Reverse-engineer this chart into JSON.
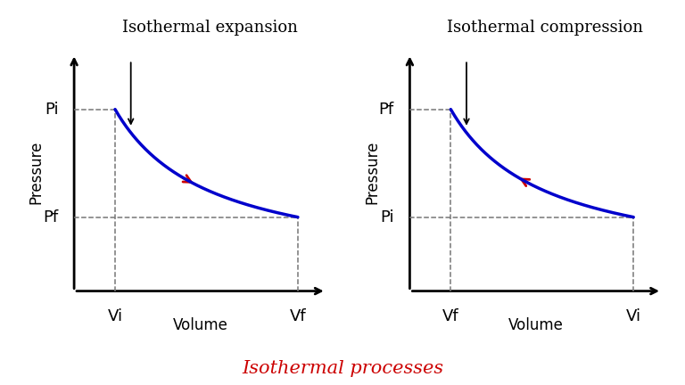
{
  "fig_width": 7.68,
  "fig_height": 4.32,
  "bg_color": "#ffffff",
  "title": "Isothermal processes",
  "title_color": "#cc0000",
  "title_fontsize": 15,
  "left_title": "Isothermal expansion",
  "right_title": "Isothermal compression",
  "subtitle_fontsize": 13,
  "curve_color": "#0000cc",
  "curve_linewidth": 2.5,
  "dashed_color": "#777777",
  "arrow_color": "#cc0000",
  "axis_color": "#000000",
  "label_fontsize": 12,
  "tick_fontsize": 13,
  "pressure_label": "Pressure",
  "volume_label": "Volume",
  "left_x_labels": [
    "Vi",
    "Vf"
  ],
  "left_y_labels": [
    "Pf",
    "Pi"
  ],
  "right_x_labels": [
    "Vf",
    "Vi"
  ],
  "right_y_labels": [
    "Pi",
    "Pf"
  ]
}
